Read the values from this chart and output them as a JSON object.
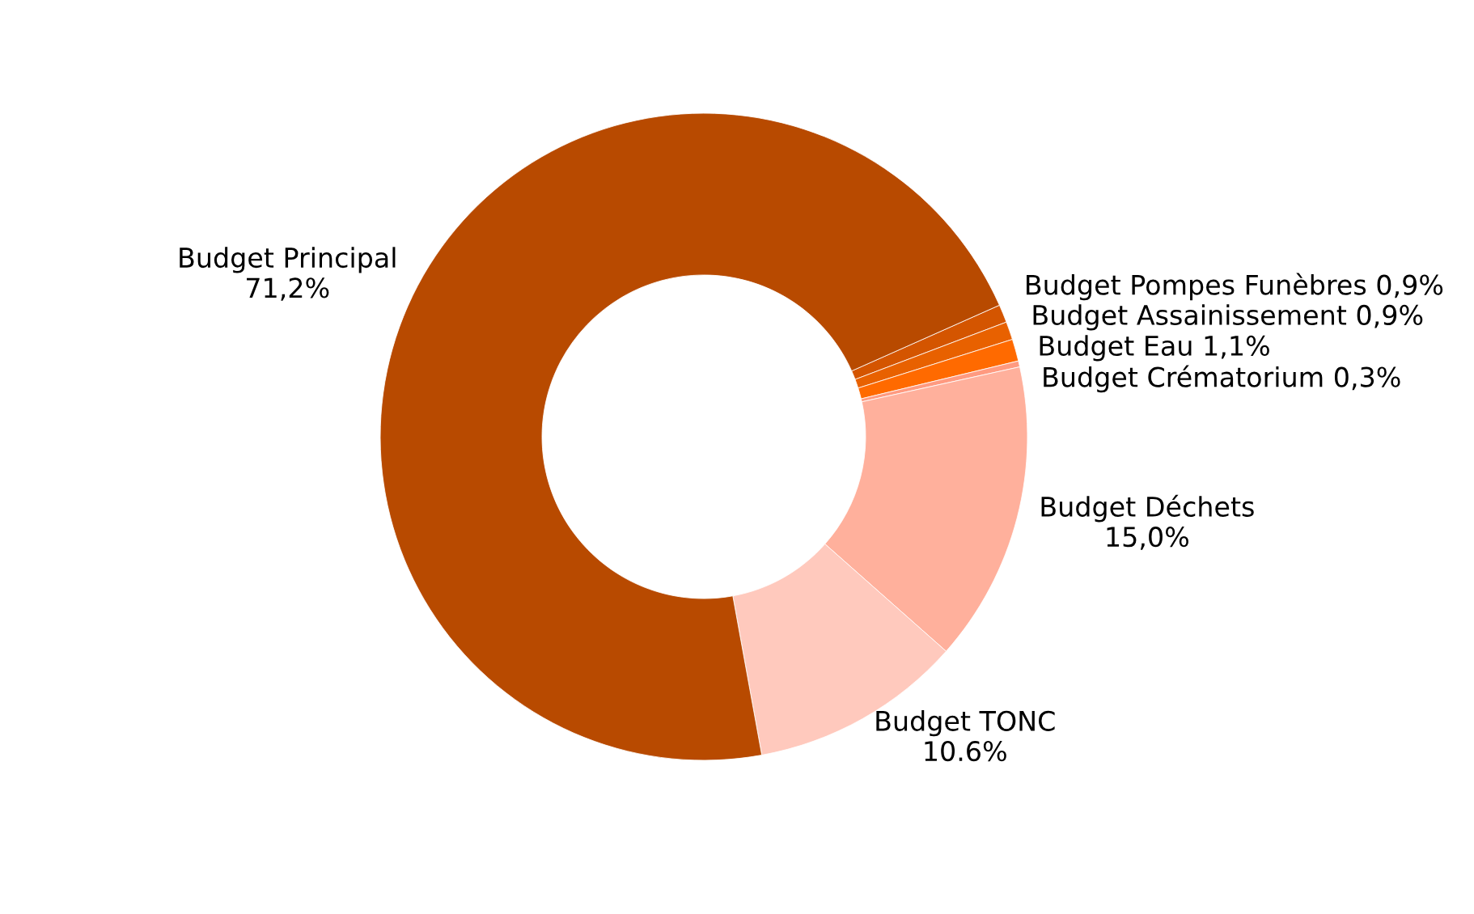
{
  "chart_data": {
    "type": "donut",
    "categories": [
      "Budget Pompes Funèbres",
      "Budget Assainissement",
      "Budget Eau",
      "Budget Crématorium",
      "Budget Déchets",
      "Budget TONC",
      "Budget Principal"
    ],
    "values": [
      0.9,
      0.9,
      1.1,
      0.3,
      15.0,
      10.6,
      71.2
    ],
    "value_labels": [
      "0,9%",
      "0,9%",
      "1,1%",
      "0,3%",
      "15,0%",
      "10.6%",
      "71,2%"
    ],
    "colors": [
      "#d45500",
      "#e86100",
      "#ff6a00",
      "#ff9a80",
      "#ffb09c",
      "#ffc9bd",
      "#b84a00"
    ]
  }
}
